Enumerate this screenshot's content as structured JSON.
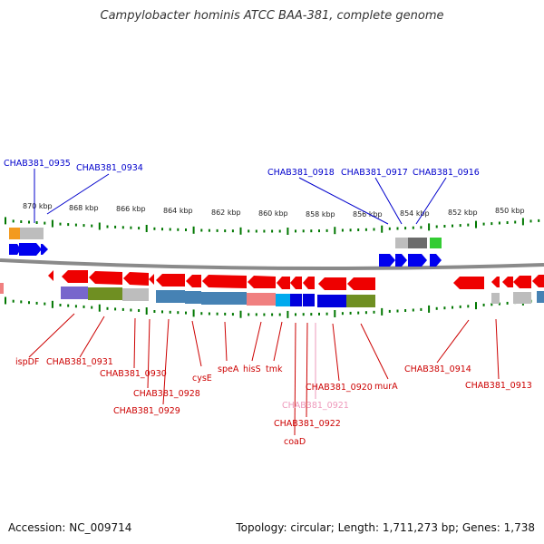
{
  "title": "Campylobacter hominis ATCC BAA-381, complete genome",
  "footer": {
    "accession": "Accession: NC_009714",
    "topology": "Topology: circular; Length: 1,711,273 bp; Genes: 1,738"
  },
  "colors": {
    "forward_label": "#0000cc",
    "reverse_label": "#cc0000",
    "forward_gene": "#0000ff",
    "reverse_gene": "#ee0000",
    "tick": "#007700",
    "backbone": "#888888"
  },
  "scale_ticks": [
    "870 kbp",
    "868 kbp",
    "866 kbp",
    "864 kbp",
    "862 kbp",
    "860 kbp",
    "858 kbp",
    "856 kbp",
    "854 kbp",
    "852 kbp",
    "850 kbp"
  ],
  "forward_labels": [
    "CHAB381_0935",
    "CHAB381_0934",
    "CHAB381_0918",
    "CHAB381_0917",
    "CHAB381_0916"
  ],
  "reverse_labels": [
    "ispDF",
    "CHAB381_0931",
    "CHAB381_0930",
    "cysE",
    "CHAB381_0928",
    "CHAB381_0929",
    "speA",
    "hisS",
    "tmk",
    "CHAB381_0920",
    "murA",
    "CHAB381_0921",
    "CHAB381_0922",
    "coaD",
    "CHAB381_0914",
    "CHAB381_0913"
  ]
}
